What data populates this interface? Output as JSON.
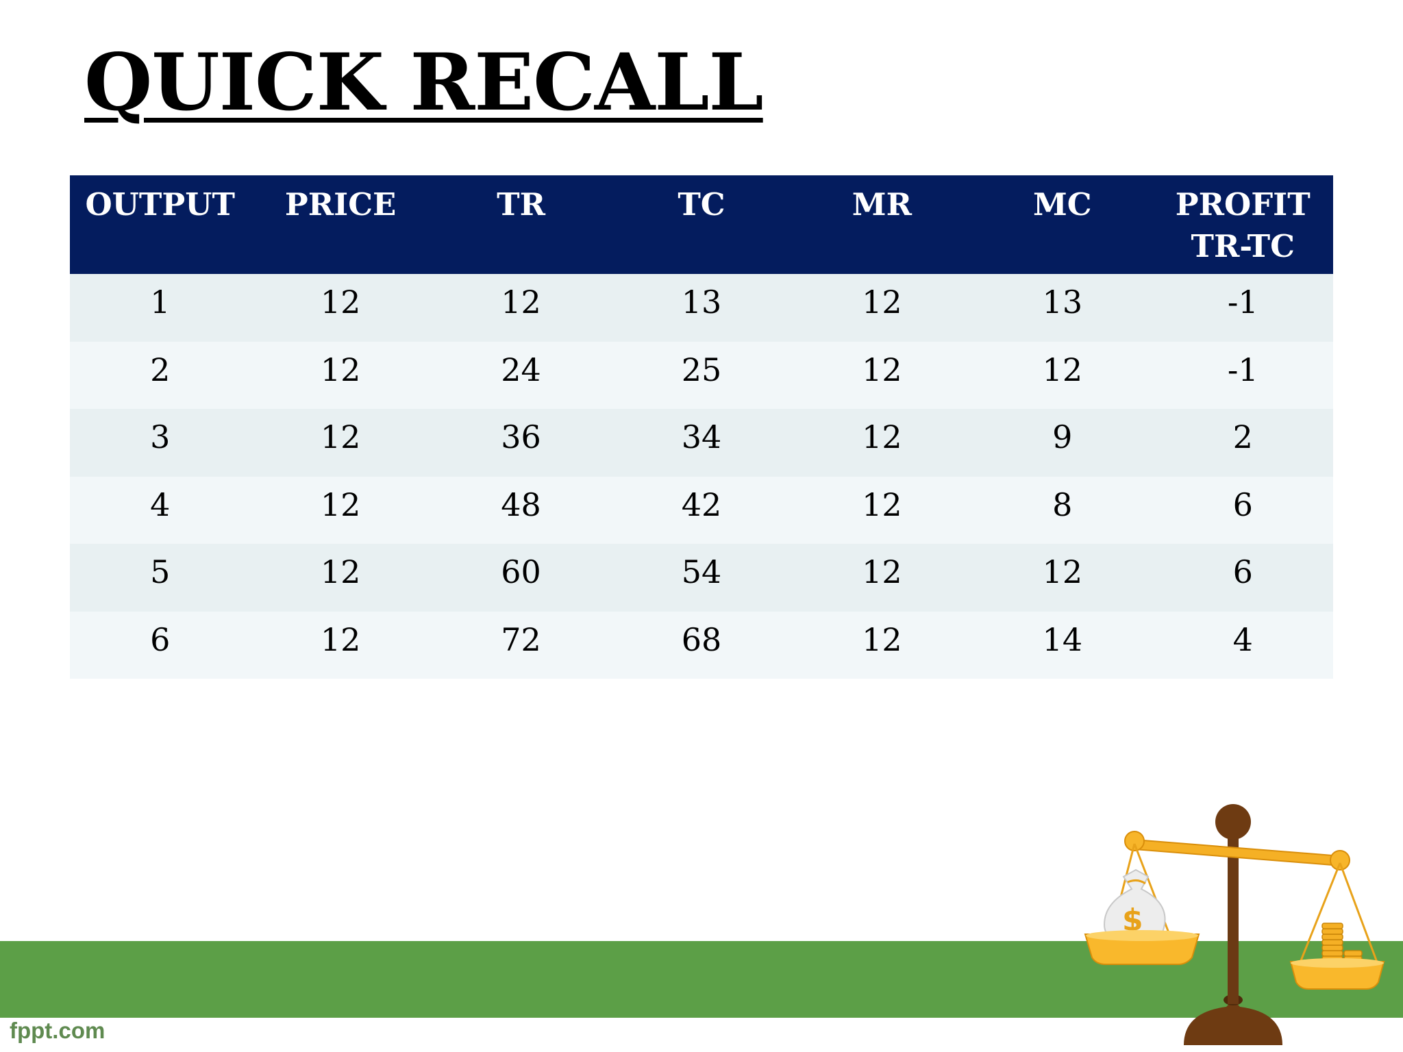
{
  "title": "QUICK RECALL",
  "table": {
    "headers": [
      "OUTPUT",
      "PRICE",
      "TR",
      "TC",
      "MR",
      "MC",
      "PROFIT\nTR-TC"
    ],
    "rows": [
      [
        "1",
        "12",
        "12",
        "13",
        "12",
        "13",
        "-1"
      ],
      [
        "2",
        "12",
        "24",
        "25",
        "12",
        "12",
        "-1"
      ],
      [
        "3",
        "12",
        "36",
        "34",
        "12",
        "9",
        "2"
      ],
      [
        "4",
        "12",
        "48",
        "42",
        "12",
        "8",
        "6"
      ],
      [
        "5",
        "12",
        "60",
        "54",
        "12",
        "12",
        "6"
      ],
      [
        "6",
        "12",
        "72",
        "68",
        "12",
        "14",
        "4"
      ]
    ]
  },
  "footer": {
    "brand": "fppt.com"
  },
  "colors": {
    "header_bg": "#041c5e",
    "row_odd": "#e8f0f2",
    "row_even": "#f2f7f9",
    "grass": "#5c9f47"
  },
  "decorations": {
    "illustration": "balance-scale-with-money-bag-and-coins"
  }
}
